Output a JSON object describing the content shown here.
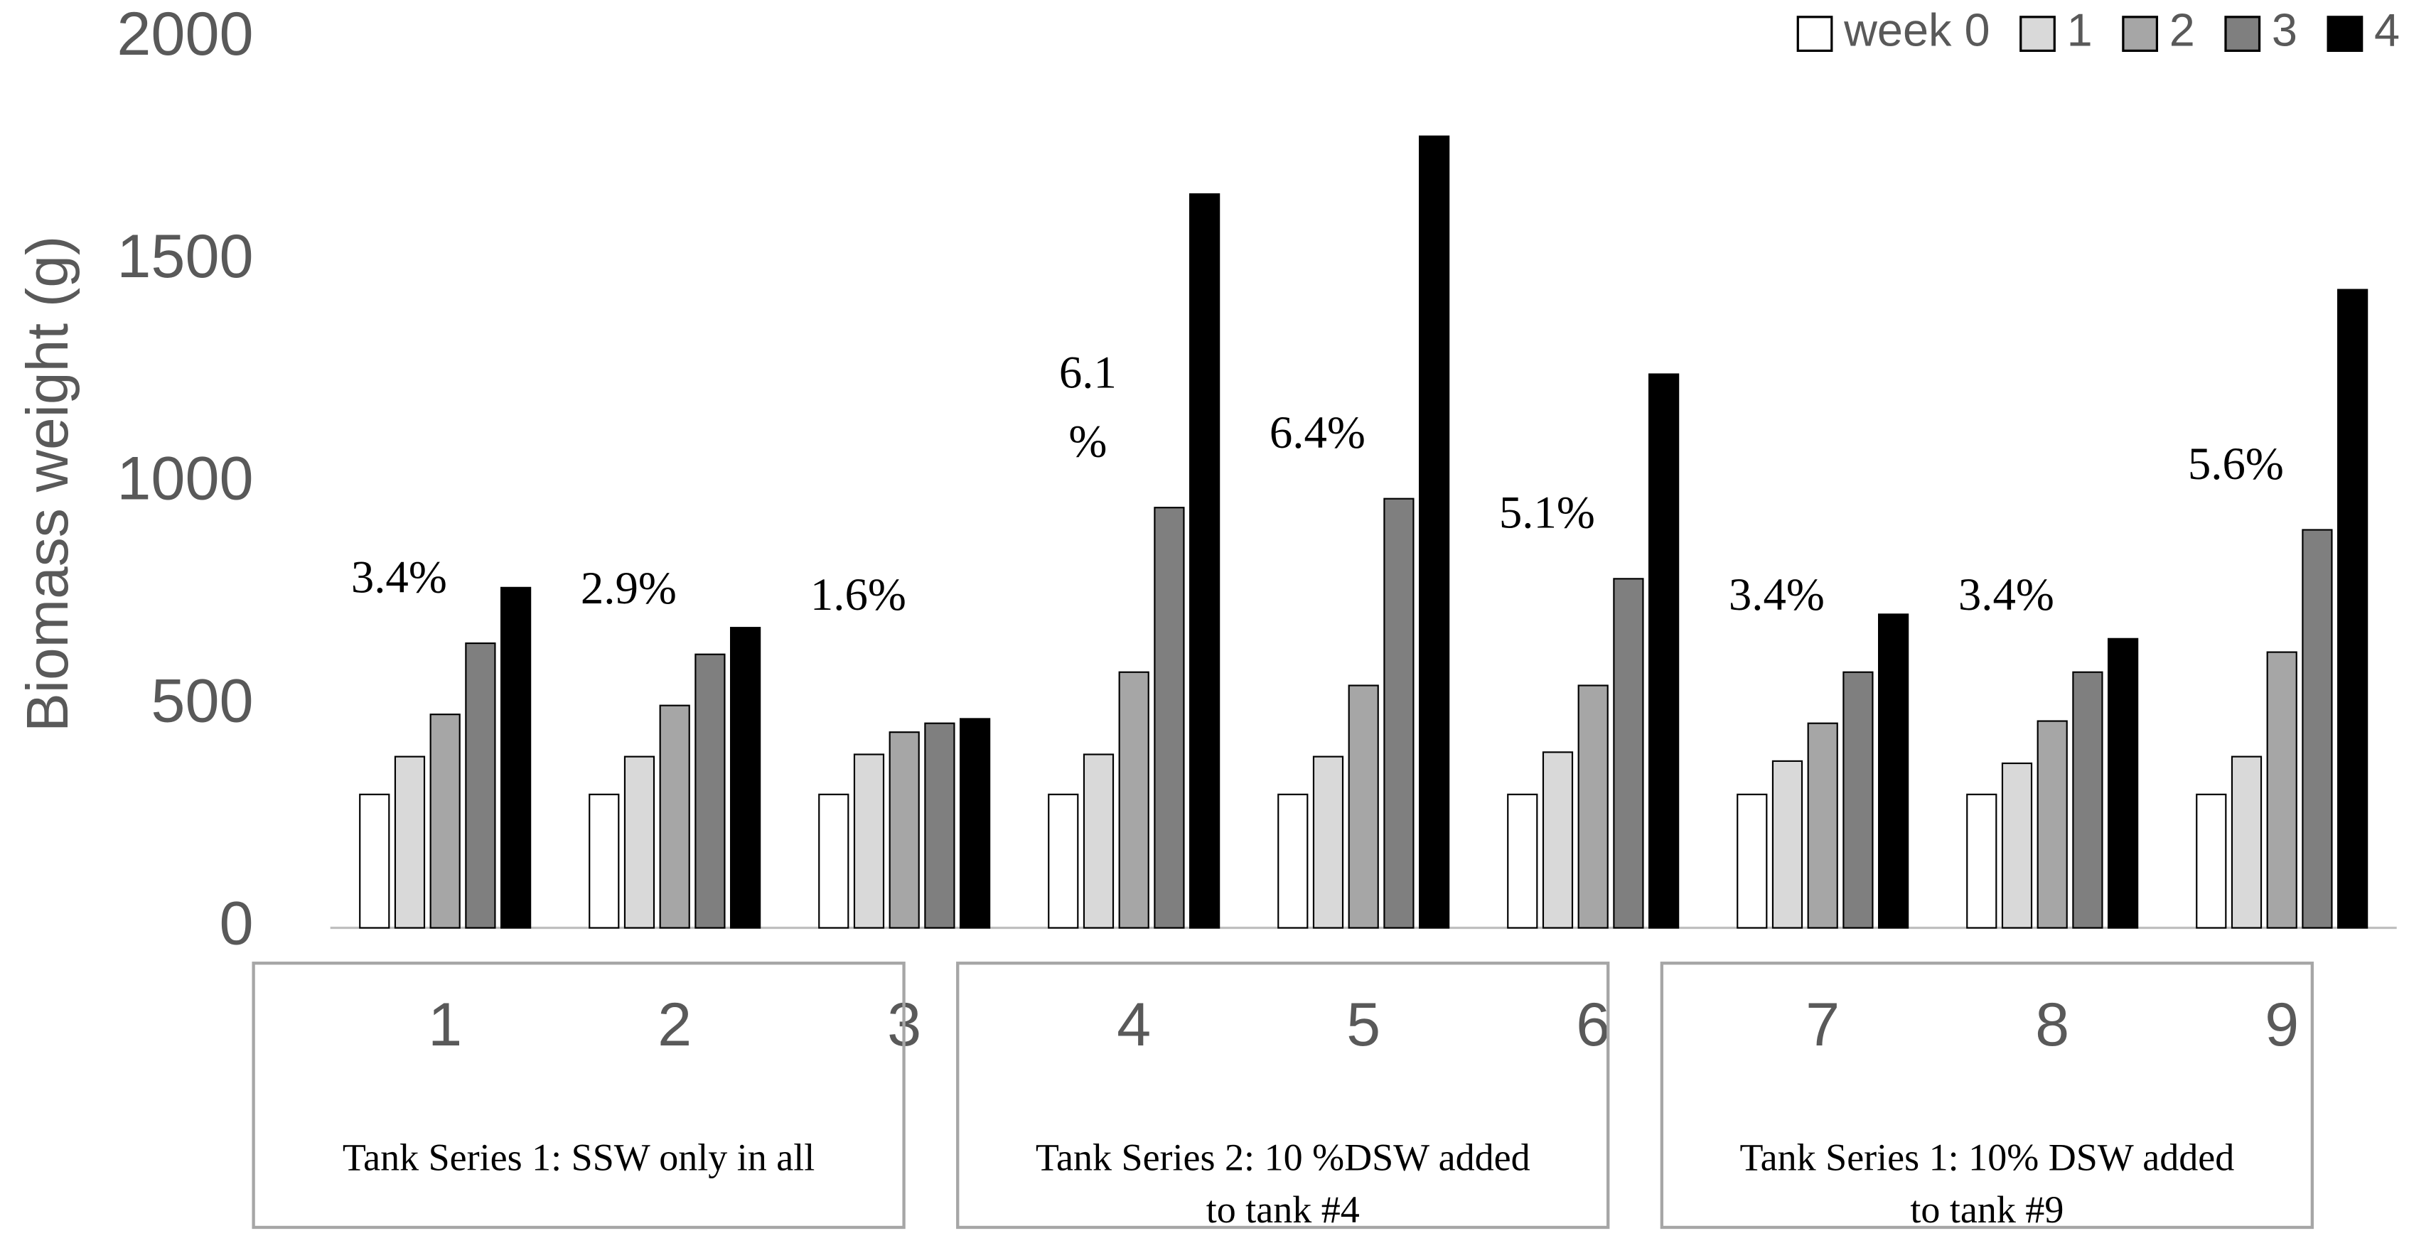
{
  "chart_data": {
    "type": "bar",
    "y_label": "Biomass weight (g)",
    "categories": [
      "1",
      "2",
      "3",
      "4",
      "5",
      "6",
      "7",
      "8",
      "9"
    ],
    "series": [
      {
        "name": "week 0",
        "color": "#ffffff",
        "values": [
          300,
          300,
          300,
          300,
          300,
          300,
          300,
          300,
          300
        ]
      },
      {
        "name": "1",
        "color": "#d9d9d9",
        "values": [
          385,
          385,
          390,
          390,
          385,
          395,
          375,
          370,
          385
        ]
      },
      {
        "name": "2",
        "color": "#a6a6a6",
        "values": [
          480,
          500,
          440,
          575,
          545,
          545,
          460,
          465,
          620
        ]
      },
      {
        "name": "3",
        "color": "#7f7f7f",
        "values": [
          640,
          615,
          460,
          945,
          965,
          785,
          575,
          575,
          895
        ]
      },
      {
        "name": "4",
        "color": "#000000",
        "values": [
          765,
          675,
          470,
          1650,
          1780,
          1245,
          705,
          650,
          1435
        ]
      }
    ],
    "annotations": [
      [
        "3.4%"
      ],
      [
        "2.9%"
      ],
      [
        "1.6%"
      ],
      [
        "6.1",
        "%"
      ],
      [
        "6.4%"
      ],
      [
        "5.1%"
      ],
      [
        "3.4%"
      ],
      [
        "3.4%"
      ],
      [
        "5.6%"
      ]
    ],
    "group_labels": [
      [
        "Tank Series 1: SSW only in all"
      ],
      [
        "Tank Series 2: 10 %DSW added",
        "to tank #4"
      ],
      [
        "Tank Series 1: 10% DSW added",
        "to tank #9"
      ]
    ],
    "ylim": [
      0,
      2000
    ],
    "yticks": [
      0,
      500,
      1000,
      1500,
      2000
    ],
    "grid": false,
    "legend": "top-right"
  }
}
